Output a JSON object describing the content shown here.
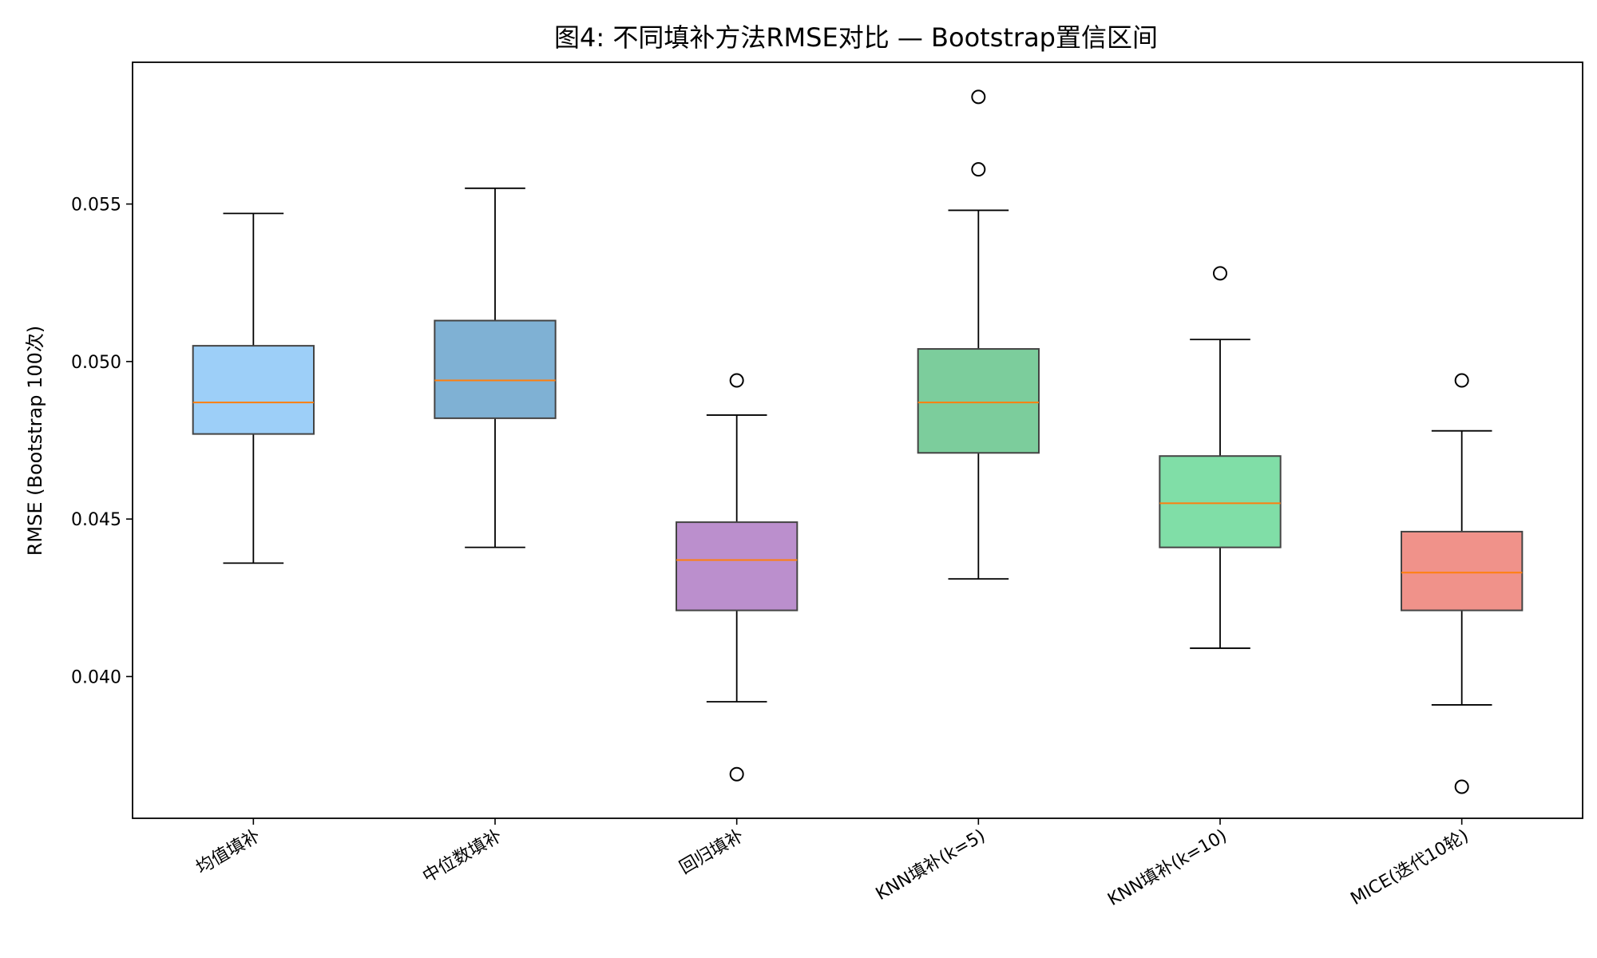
{
  "chart_data": {
    "type": "box",
    "title": "图4: 不同填补方法RMSE对比 — Bootstrap置信区间",
    "xlabel": "",
    "ylabel": "RMSE (Bootstrap 100次)",
    "ylim": [
      0.0355,
      0.0595
    ],
    "yticks": [
      "0.040",
      "0.045",
      "0.050",
      "0.055"
    ],
    "grid": false,
    "median_color": "#ff7f0e",
    "categories": [
      "均值填补",
      "中位数填补",
      "回归填补",
      "KNN填补(k=5)",
      "KNN填补(k=10)",
      "MICE(迭代10轮)"
    ],
    "series": [
      {
        "whisker_low": 0.0436,
        "q1": 0.0477,
        "median": 0.0487,
        "q3": 0.0505,
        "whisker_high": 0.0547,
        "outliers": [],
        "color": "#9dcff8"
      },
      {
        "whisker_low": 0.0441,
        "q1": 0.0482,
        "median": 0.0494,
        "q3": 0.0513,
        "whisker_high": 0.0555,
        "outliers": [],
        "color": "#7fb1d4"
      },
      {
        "whisker_low": 0.0392,
        "q1": 0.0421,
        "median": 0.0437,
        "q3": 0.0449,
        "whisker_high": 0.0483,
        "outliers": [
          0.0494,
          0.0369
        ],
        "color": "#bb8fcd"
      },
      {
        "whisker_low": 0.0431,
        "q1": 0.0471,
        "median": 0.0487,
        "q3": 0.0504,
        "whisker_high": 0.0548,
        "outliers": [
          0.0584,
          0.0561
        ],
        "color": "#7ccd9c"
      },
      {
        "whisker_low": 0.0409,
        "q1": 0.0441,
        "median": 0.0455,
        "q3": 0.047,
        "whisker_high": 0.0507,
        "outliers": [
          0.0528
        ],
        "color": "#80dea7"
      },
      {
        "whisker_low": 0.0391,
        "q1": 0.0421,
        "median": 0.0433,
        "q3": 0.0446,
        "whisker_high": 0.0478,
        "outliers": [
          0.0494,
          0.0365
        ],
        "color": "#f0928a"
      }
    ]
  }
}
